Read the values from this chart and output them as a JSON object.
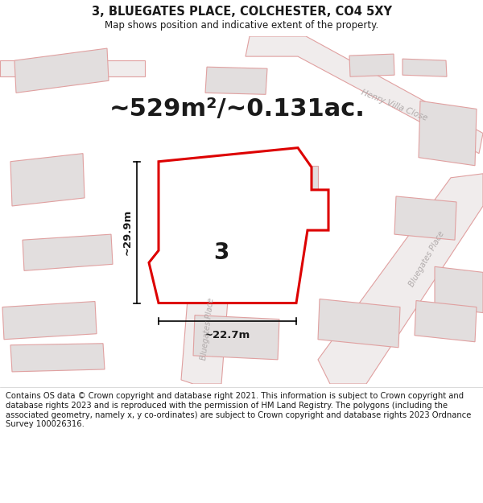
{
  "title": "3, BLUEGATES PLACE, COLCHESTER, CO4 5XY",
  "subtitle": "Map shows position and indicative extent of the property.",
  "area_text": "~529m²/~0.131ac.",
  "dim_height": "~29.9m",
  "dim_width": "~22.7m",
  "plot_number": "3",
  "footer": "Contains OS data © Crown copyright and database right 2021. This information is subject to Crown copyright and database rights 2023 and is reproduced with the permission of HM Land Registry. The polygons (including the associated geometry, namely x, y co-ordinates) are subject to Crown copyright and database rights 2023 Ordnance Survey 100026316.",
  "map_bg": "#f7f4f4",
  "plot_fill": "#ffffff",
  "plot_edge_color": "#dd0000",
  "neighbor_fill": "#e2dede",
  "neighbor_edge": "#e0a0a0",
  "road_fill": "#f0ecec",
  "road_edge": "#e0a0a0",
  "text_color": "#1a1a1a",
  "gray_text": "#b0aaaa",
  "title_fontsize": 10.5,
  "subtitle_fontsize": 8.5,
  "area_fontsize": 22,
  "dim_fontsize": 9.5,
  "plot_num_fontsize": 20,
  "footer_fontsize": 7.2
}
